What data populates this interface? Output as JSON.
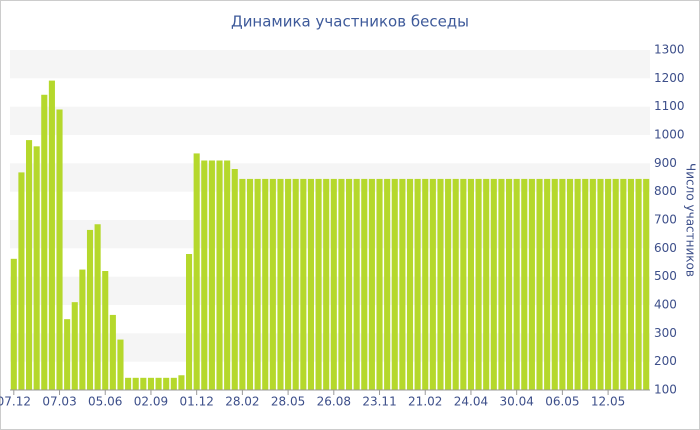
{
  "chart_data": {
    "type": "bar",
    "title": "Динамика участников беседы",
    "y_label": "Число участников",
    "categories": [
      "07.12",
      null,
      null,
      null,
      null,
      null,
      "07.03",
      null,
      null,
      null,
      null,
      null,
      "05.06",
      null,
      null,
      null,
      null,
      null,
      "02.09",
      null,
      null,
      null,
      null,
      null,
      "01.12",
      null,
      null,
      null,
      null,
      null,
      "28.02",
      null,
      null,
      null,
      null,
      null,
      "28.05",
      null,
      null,
      null,
      null,
      null,
      "26.08",
      null,
      null,
      null,
      null,
      null,
      "23.11",
      null,
      null,
      null,
      null,
      null,
      "21.02",
      null,
      null,
      null,
      null,
      null,
      "24.04",
      null,
      null,
      null,
      null,
      null,
      "30.04",
      null,
      null,
      null,
      null,
      null,
      "06.05",
      null,
      null,
      null,
      null,
      null,
      "12.05",
      null,
      null,
      null,
      null,
      null
    ],
    "values": [
      563,
      868,
      982,
      960,
      1142,
      1192,
      1090,
      350,
      410,
      525,
      665,
      685,
      520,
      365,
      278,
      143,
      143,
      143,
      143,
      143,
      143,
      143,
      152,
      580,
      935,
      910,
      910,
      910,
      910,
      880,
      845,
      845,
      845,
      845,
      845,
      845,
      845,
      845,
      845,
      845,
      845,
      845,
      845,
      845,
      845,
      845,
      845,
      845,
      845,
      845,
      845,
      845,
      845,
      845,
      845,
      845,
      845,
      845,
      845,
      845,
      845,
      845,
      845,
      845,
      845,
      845,
      845,
      845,
      845,
      845,
      845,
      845,
      845,
      845,
      845,
      845,
      845,
      845,
      845,
      845,
      845,
      845,
      845,
      845
    ],
    "color": "#b5d82c",
    "ylim": [
      100,
      1300
    ],
    "yticks": [
      100,
      200,
      300,
      400,
      500,
      600,
      700,
      800,
      900,
      1000,
      1100,
      1200,
      1300
    ],
    "grid": true
  }
}
